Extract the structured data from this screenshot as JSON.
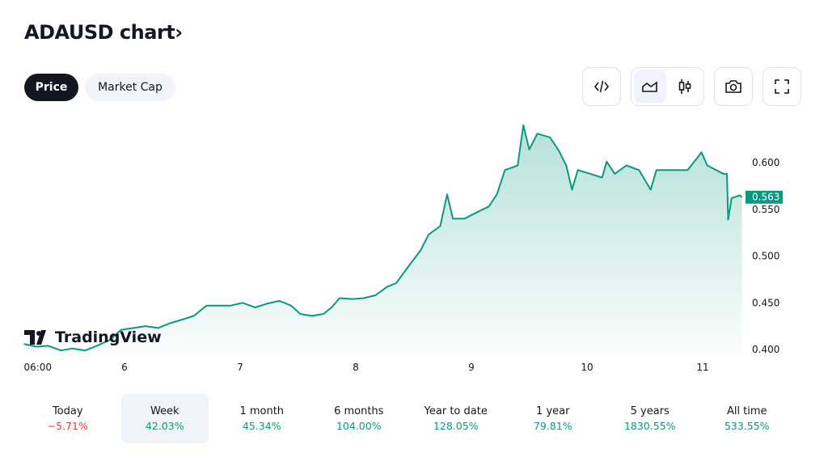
{
  "header": {
    "title": "ADAUSD chart",
    "chevron": "›"
  },
  "tabs": [
    {
      "label": "Price",
      "active": true
    },
    {
      "label": "Market Cap",
      "active": false
    }
  ],
  "toolbar": [
    "embed-code-icon",
    "area-chart-icon",
    "candlestick-icon",
    "camera-icon",
    "fullscreen-icon"
  ],
  "logo": "TradingView",
  "colors": {
    "line": "#089981",
    "fill": "#089981",
    "negative": "#f23645",
    "positive": "#089981"
  },
  "chart_data": {
    "type": "area",
    "title": "",
    "x_tick_labels": [
      {
        "x": 5.25,
        "label": "06:00"
      },
      {
        "x": 6,
        "label": "6"
      },
      {
        "x": 7,
        "label": "7"
      },
      {
        "x": 8,
        "label": "8"
      },
      {
        "x": 9,
        "label": "9"
      },
      {
        "x": 10,
        "label": "10"
      },
      {
        "x": 11,
        "label": "11"
      }
    ],
    "y_ticks": [
      "0.400",
      "0.450",
      "0.500",
      "0.550",
      "0.600"
    ],
    "ylim": [
      0.4,
      0.6
    ],
    "last_price": "0.563",
    "grid": false,
    "x": [
      5.13,
      5.24,
      5.34,
      5.45,
      5.55,
      5.66,
      5.76,
      5.87,
      5.97,
      6.08,
      6.18,
      6.29,
      6.39,
      6.5,
      6.6,
      6.71,
      6.81,
      6.92,
      7.02,
      7.13,
      7.23,
      7.34,
      7.44,
      7.52,
      7.62,
      7.72,
      7.79,
      7.86,
      7.97,
      8.07,
      8.17,
      8.27,
      8.35,
      8.45,
      8.56,
      8.63,
      8.73,
      8.79,
      8.84,
      8.94,
      9.05,
      9.15,
      9.22,
      9.29,
      9.4,
      9.45,
      9.5,
      9.57,
      9.68,
      9.75,
      9.82,
      9.87,
      9.92,
      10.03,
      10.13,
      10.17,
      10.24,
      10.34,
      10.45,
      10.55,
      10.6,
      10.73,
      10.87,
      10.99,
      11.04,
      11.18,
      11.21,
      11.22,
      11.25,
      11.32,
      11.34
    ],
    "y": [
      0.406,
      0.403,
      0.404,
      0.399,
      0.401,
      0.399,
      0.404,
      0.41,
      0.421,
      0.423,
      0.425,
      0.423,
      0.428,
      0.432,
      0.436,
      0.447,
      0.447,
      0.447,
      0.45,
      0.445,
      0.449,
      0.452,
      0.447,
      0.438,
      0.436,
      0.438,
      0.445,
      0.455,
      0.454,
      0.455,
      0.458,
      0.467,
      0.471,
      0.488,
      0.506,
      0.523,
      0.532,
      0.566,
      0.54,
      0.54,
      0.547,
      0.553,
      0.566,
      0.592,
      0.597,
      0.64,
      0.614,
      0.631,
      0.627,
      0.614,
      0.597,
      0.571,
      0.592,
      0.588,
      0.584,
      0.601,
      0.588,
      0.597,
      0.592,
      0.571,
      0.592,
      0.592,
      0.592,
      0.611,
      0.597,
      0.588,
      0.588,
      0.539,
      0.562,
      0.565,
      0.563
    ]
  },
  "periods": [
    {
      "label": "Today",
      "value": "−5.71%",
      "dir": "dn"
    },
    {
      "label": "Week",
      "value": "42.03%",
      "dir": "up",
      "selected": true
    },
    {
      "label": "1 month",
      "value": "45.34%",
      "dir": "up"
    },
    {
      "label": "6 months",
      "value": "104.00%",
      "dir": "up"
    },
    {
      "label": "Year to date",
      "value": "128.05%",
      "dir": "up"
    },
    {
      "label": "1 year",
      "value": "79.81%",
      "dir": "up"
    },
    {
      "label": "5 years",
      "value": "1830.55%",
      "dir": "up"
    },
    {
      "label": "All time",
      "value": "533.55%",
      "dir": "up"
    }
  ]
}
